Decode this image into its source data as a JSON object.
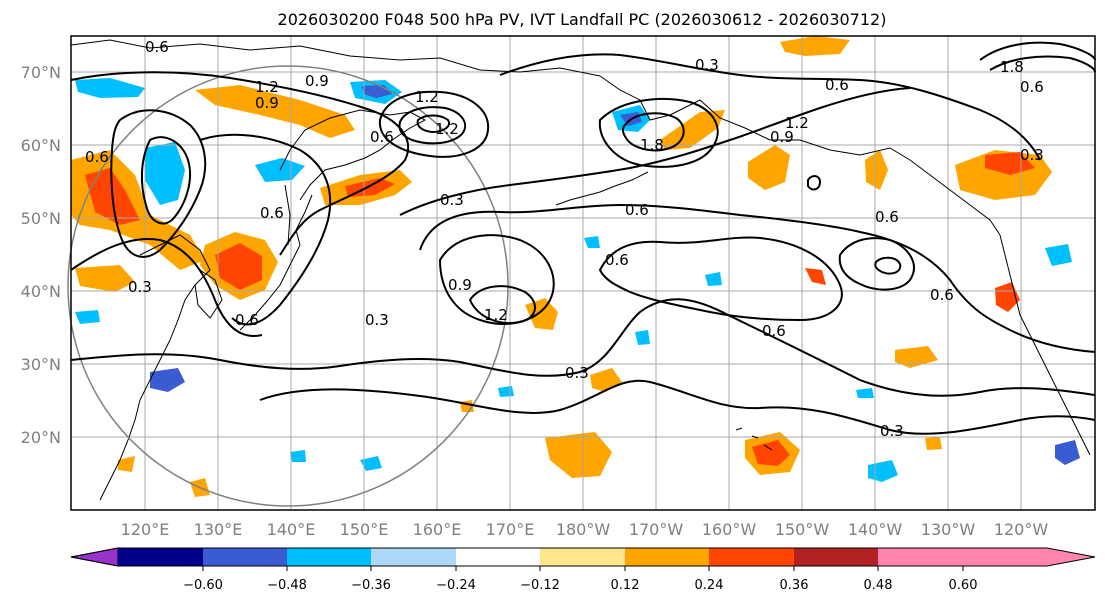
{
  "title": "2026030200 F048 500 hPa PV, IVT Landfall PC (2026030612 - 2026030712)",
  "lat_labels": [
    "20°N",
    "30°N",
    "40°N",
    "50°N",
    "60°N",
    "70°N"
  ],
  "lon_labels": [
    "120°E",
    "130°E",
    "140°E",
    "150°E",
    "160°E",
    "170°E",
    "180°W",
    "170°W",
    "160°W",
    "150°W",
    "140°W",
    "130°W",
    "120°W"
  ],
  "colorbar": {
    "ticks": [
      "−0.60",
      "−0.48",
      "−0.36",
      "−0.24",
      "−0.12",
      "0.12",
      "0.24",
      "0.36",
      "0.48",
      "0.60"
    ],
    "colors": [
      "#9932cc",
      "#00008b",
      "#3a5bd1",
      "#00bfff",
      "#add8f7",
      "#ffffff",
      "#ffe68a",
      "#ffa500",
      "#ff4500",
      "#b22222",
      "#ff85b0"
    ]
  },
  "contour_labels": [
    {
      "text": "0.6"
    },
    {
      "text": "1.2"
    },
    {
      "text": "0.9"
    },
    {
      "text": "0.9"
    },
    {
      "text": "1.2"
    },
    {
      "text": "0.6"
    },
    {
      "text": "1.2"
    },
    {
      "text": "0.6"
    },
    {
      "text": "0.3"
    },
    {
      "text": "0.6"
    },
    {
      "text": "0.6"
    },
    {
      "text": "0.9"
    },
    {
      "text": "1.2"
    },
    {
      "text": "0.3"
    },
    {
      "text": "0.3"
    },
    {
      "text": "0.3"
    },
    {
      "text": "0.6"
    },
    {
      "text": "0.3"
    },
    {
      "text": "0.3"
    },
    {
      "text": "0.6"
    },
    {
      "text": "0.6"
    },
    {
      "text": "0.6"
    },
    {
      "text": "0.6"
    },
    {
      "text": "1.8"
    },
    {
      "text": "1.2"
    },
    {
      "text": "0.9"
    },
    {
      "text": "1.8"
    },
    {
      "text": "0.6"
    },
    {
      "text": "0.3"
    },
    {
      "text": "0.6"
    }
  ]
}
